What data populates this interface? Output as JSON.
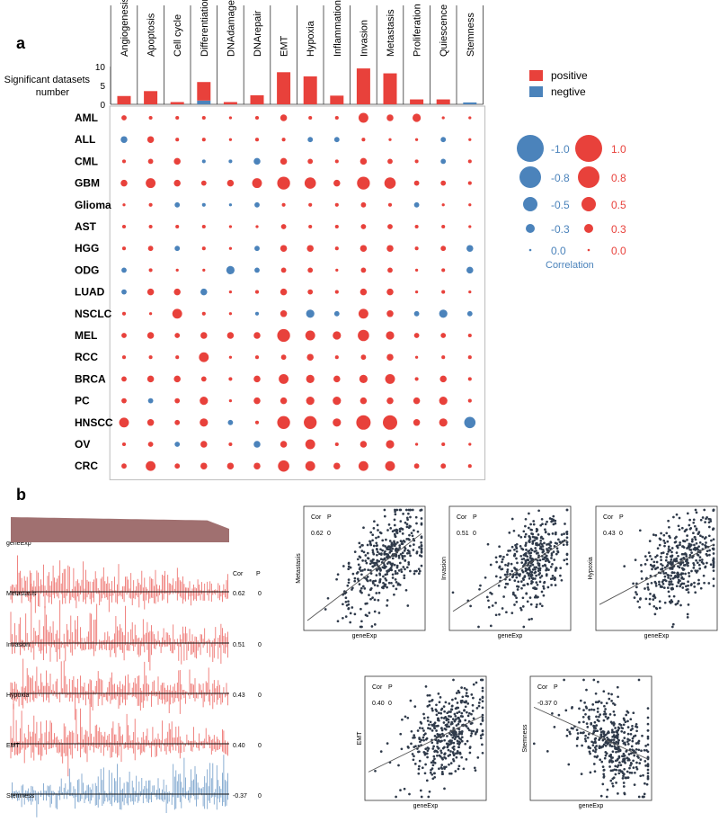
{
  "panel_a_letter": "a",
  "panel_b_letter": "b",
  "colors": {
    "positive": "#e8413b",
    "negative": "#4b83bb",
    "track": "#a07070",
    "stemness_track": "#4b83bb"
  },
  "chart_data": [
    {
      "type": "bar",
      "id": "significant-datasets",
      "ylabel": "Significant datasets number",
      "ylim": [
        0,
        10
      ],
      "yticks": [
        "10",
        "5",
        "0"
      ],
      "categories": [
        "Angiogenesis",
        "Apoptosis",
        "Cell cycle",
        "Differentiation",
        "DNAdamage",
        "DNArepair",
        "EMT",
        "Hypoxia",
        "Inflammation",
        "Invasion",
        "Metastasis",
        "Proliferation",
        "Quiescence",
        "Stemness"
      ],
      "series": [
        {
          "name": "positive",
          "values": [
            2.2,
            3.5,
            0.6,
            4.9,
            0.6,
            2.4,
            8.5,
            7.4,
            2.3,
            9.5,
            8.2,
            1.3,
            1.3,
            0
          ]
        },
        {
          "name": "negtive",
          "values": [
            0,
            0,
            0,
            1.0,
            0,
            0,
            0,
            0,
            0,
            0,
            0,
            0,
            0,
            0.5
          ]
        }
      ],
      "legend": [
        "positive",
        "negtive"
      ]
    },
    {
      "type": "bubble",
      "id": "correlation-dot-matrix",
      "columns": [
        "Angiogenesis",
        "Apoptosis",
        "Cell cycle",
        "Differentiation",
        "DNAdamage",
        "DNArepair",
        "EMT",
        "Hypoxia",
        "Inflammation",
        "Invasion",
        "Metastasis",
        "Proliferation",
        "Quiescence",
        "Stemness"
      ],
      "rows": [
        "AML",
        "ALL",
        "CML",
        "GBM",
        "Glioma",
        "AST",
        "HGG",
        "ODG",
        "LUAD",
        "NSCLC",
        "MEL",
        "RCC",
        "BRCA",
        "PC",
        "HNSCC",
        "OV",
        "CRC"
      ],
      "values": [
        [
          0.2,
          0.1,
          0.1,
          0.1,
          0.05,
          0.1,
          0.3,
          0.1,
          0.1,
          0.5,
          0.3,
          0.4,
          0.05,
          0.05
        ],
        [
          -0.3,
          0.3,
          0.1,
          0.1,
          0.05,
          0.1,
          0.1,
          -0.2,
          -0.2,
          0.1,
          0.05,
          0.05,
          -0.2,
          0.05
        ],
        [
          0.1,
          0.2,
          0.3,
          -0.1,
          -0.1,
          -0.3,
          0.3,
          0.2,
          0.1,
          0.3,
          0.2,
          0.1,
          -0.2,
          0.1
        ],
        [
          0.3,
          0.5,
          0.3,
          0.2,
          0.3,
          0.5,
          0.7,
          0.6,
          0.3,
          0.7,
          0.6,
          0.2,
          0.2,
          0.1
        ],
        [
          0.05,
          0.1,
          -0.2,
          -0.1,
          -0.05,
          -0.2,
          0.1,
          0.1,
          0.1,
          0.2,
          0.1,
          -0.2,
          0.05,
          0.05
        ],
        [
          0.1,
          0.1,
          0.1,
          0.1,
          0.05,
          0.05,
          0.2,
          0.1,
          0.1,
          0.2,
          0.2,
          0.1,
          0.1,
          0.05
        ],
        [
          0.1,
          0.2,
          -0.2,
          0.1,
          0.05,
          -0.2,
          0.3,
          0.3,
          0.1,
          0.3,
          0.3,
          0.1,
          0.2,
          -0.3
        ],
        [
          -0.2,
          0.1,
          0.05,
          0.05,
          -0.4,
          -0.2,
          0.2,
          0.2,
          0.05,
          0.2,
          0.2,
          0.05,
          0.1,
          -0.3
        ],
        [
          -0.2,
          0.3,
          0.3,
          -0.3,
          0.05,
          0.1,
          0.3,
          0.2,
          0.1,
          0.3,
          0.3,
          0.05,
          0.1,
          0.05
        ],
        [
          0.1,
          0.05,
          0.5,
          0.1,
          0.05,
          -0.1,
          0.3,
          -0.4,
          -0.2,
          0.5,
          0.3,
          -0.2,
          -0.4,
          -0.2
        ],
        [
          0.2,
          0.3,
          0.2,
          0.3,
          0.3,
          0.3,
          0.7,
          0.5,
          0.4,
          0.6,
          0.4,
          0.2,
          0.2,
          0.1
        ],
        [
          0.1,
          0.1,
          0.1,
          0.5,
          0.05,
          0.1,
          0.2,
          0.3,
          0.1,
          0.2,
          0.3,
          0.05,
          0.1,
          0.1
        ],
        [
          0.2,
          0.3,
          0.3,
          0.2,
          0.1,
          0.3,
          0.5,
          0.4,
          0.3,
          0.4,
          0.5,
          0.1,
          0.3,
          0.1
        ],
        [
          0.2,
          -0.2,
          0.2,
          0.4,
          0.05,
          0.3,
          0.3,
          0.4,
          0.4,
          0.3,
          0.3,
          0.3,
          0.4,
          0.1
        ],
        [
          0.5,
          0.3,
          0.2,
          0.4,
          -0.2,
          0.1,
          0.7,
          0.7,
          0.4,
          0.8,
          0.8,
          0.3,
          0.4,
          -0.6
        ],
        [
          0.1,
          0.2,
          -0.2,
          0.3,
          0.1,
          -0.3,
          0.3,
          0.5,
          0.1,
          0.3,
          0.4,
          0.05,
          0.1,
          0.05
        ],
        [
          0.2,
          0.5,
          0.2,
          0.3,
          0.3,
          0.3,
          0.6,
          0.5,
          0.3,
          0.5,
          0.5,
          0.2,
          0.2,
          0.1
        ]
      ],
      "size_legend": {
        "negative_labels": [
          "-1.0",
          "-0.8",
          "-0.5",
          "-0.3",
          "0.0"
        ],
        "positive_labels": [
          "1.0",
          "0.8",
          "0.5",
          "0.3",
          "0.0"
        ],
        "values": [
          1.0,
          0.8,
          0.5,
          0.3,
          0.0
        ],
        "title": "Correlation"
      }
    },
    {
      "type": "bar",
      "id": "gene-tracks",
      "track_label": "geneExp",
      "header": {
        "cor": "Cor",
        "p": "P"
      },
      "tracks": [
        {
          "label": "Metastasis",
          "cor": "0.62",
          "p": "0"
        },
        {
          "label": "Invasion",
          "cor": "0.51",
          "p": "0"
        },
        {
          "label": "Hypoxia",
          "cor": "0.43",
          "p": "0"
        },
        {
          "label": "EMT",
          "cor": "0.40",
          "p": "0"
        },
        {
          "label": "Stemness",
          "cor": "-0.37",
          "p": "0"
        }
      ]
    },
    {
      "type": "scatter",
      "id": "scatter-panels",
      "xlabel": "geneExp",
      "header": {
        "cor": "Cor",
        "p": "P"
      },
      "panels": [
        {
          "ylabel": "Metastasis",
          "cor": "0.62",
          "p": "0",
          "r": 0.62
        },
        {
          "ylabel": "Invasion",
          "cor": "0.51",
          "p": "0",
          "r": 0.51
        },
        {
          "ylabel": "Hypoxia",
          "cor": "0.43",
          "p": "0",
          "r": 0.43
        },
        {
          "ylabel": "EMT",
          "cor": "0.40",
          "p": "0",
          "r": 0.4
        },
        {
          "ylabel": "Stemness",
          "cor": "-0.37",
          "p": "0",
          "r": -0.37
        }
      ]
    }
  ]
}
